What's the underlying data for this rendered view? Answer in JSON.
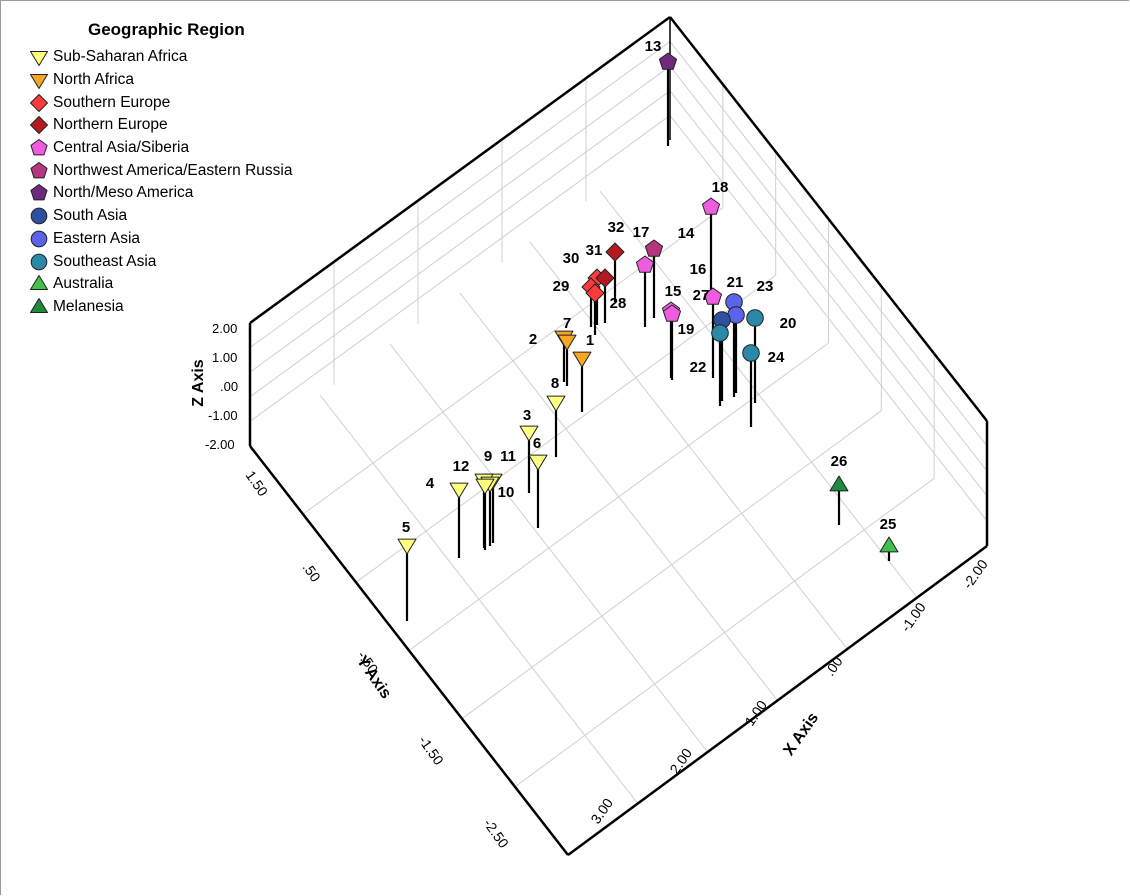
{
  "chart_data": {
    "type": "scatter3d",
    "legend": {
      "title": "Geographic Region",
      "placement": "top-left",
      "entries": [
        {
          "name": "Sub-Saharan Africa",
          "marker": "triangle-down",
          "color": "#ffff80"
        },
        {
          "name": "North Africa",
          "marker": "triangle-down",
          "color": "#f5a623"
        },
        {
          "name": "Southern Europe",
          "marker": "diamond",
          "color": "#ff3a3a"
        },
        {
          "name": "Northern Europe",
          "marker": "diamond",
          "color": "#b3191f"
        },
        {
          "name": "Central Asia/Siberia",
          "marker": "pentagon",
          "color": "#f05ce0"
        },
        {
          "name": "Northwest America/Eastern Russia",
          "marker": "pentagon",
          "color": "#b6357f"
        },
        {
          "name": "North/Meso America",
          "marker": "pentagon",
          "color": "#6f2a7f"
        },
        {
          "name": "South Asia",
          "marker": "circle",
          "color": "#2f4fa0"
        },
        {
          "name": "Eastern Asia",
          "marker": "circle",
          "color": "#5a63ea"
        },
        {
          "name": "Southeast Asia",
          "marker": "circle",
          "color": "#2a88a8"
        },
        {
          "name": "Australia",
          "marker": "triangle-up",
          "color": "#3fc24a"
        },
        {
          "name": "Melanesia",
          "marker": "triangle-up",
          "color": "#1e8a3c"
        }
      ]
    },
    "axes": {
      "x": {
        "label": "X Axis",
        "ticks": [
          "-2.00",
          "-1.00",
          ".00",
          "1.00",
          "2.00",
          "3.00"
        ]
      },
      "y": {
        "label": "Y Axis",
        "ticks": [
          "1.50",
          ".50",
          "-.50",
          "-1.50",
          "-2.50"
        ]
      },
      "z": {
        "label": "Z Axis",
        "ticks": [
          "2.00",
          "1.00",
          ".00",
          "-1.00",
          "-2.00"
        ]
      }
    },
    "grid": true,
    "points": [
      {
        "id": "1",
        "region": "North Africa"
      },
      {
        "id": "2",
        "region": "North Africa"
      },
      {
        "id": "3",
        "region": "Sub-Saharan Africa"
      },
      {
        "id": "4",
        "region": "Sub-Saharan Africa"
      },
      {
        "id": "5",
        "region": "Sub-Saharan Africa"
      },
      {
        "id": "6",
        "region": "Sub-Saharan Africa"
      },
      {
        "id": "7",
        "region": "North Africa"
      },
      {
        "id": "8",
        "region": "Sub-Saharan Africa"
      },
      {
        "id": "9",
        "region": "Sub-Saharan Africa"
      },
      {
        "id": "10",
        "region": "Sub-Saharan Africa"
      },
      {
        "id": "11",
        "region": "Sub-Saharan Africa"
      },
      {
        "id": "12",
        "region": "Sub-Saharan Africa"
      },
      {
        "id": "13",
        "region": "North/Meso America"
      },
      {
        "id": "14",
        "region": "Northwest America/Eastern Russia"
      },
      {
        "id": "15",
        "region": "Central Asia/Siberia"
      },
      {
        "id": "16",
        "region": "Central Asia/Siberia"
      },
      {
        "id": "17",
        "region": "Central Asia/Siberia"
      },
      {
        "id": "18",
        "region": "Central Asia/Siberia"
      },
      {
        "id": "19",
        "region": "Central Asia/Siberia"
      },
      {
        "id": "20",
        "region": "Southeast Asia"
      },
      {
        "id": "21",
        "region": "Eastern Asia"
      },
      {
        "id": "22",
        "region": "Southeast Asia"
      },
      {
        "id": "23",
        "region": "Eastern Asia"
      },
      {
        "id": "24",
        "region": "Southeast Asia"
      },
      {
        "id": "25",
        "region": "Australia"
      },
      {
        "id": "26",
        "region": "Melanesia"
      },
      {
        "id": "27",
        "region": "South Asia"
      },
      {
        "id": "28",
        "region": "Southern Europe"
      },
      {
        "id": "29",
        "region": "Southern Europe"
      },
      {
        "id": "30",
        "region": "Southern Europe"
      },
      {
        "id": "31",
        "region": "Northern Europe"
      },
      {
        "id": "32",
        "region": "Northern Europe"
      }
    ]
  }
}
